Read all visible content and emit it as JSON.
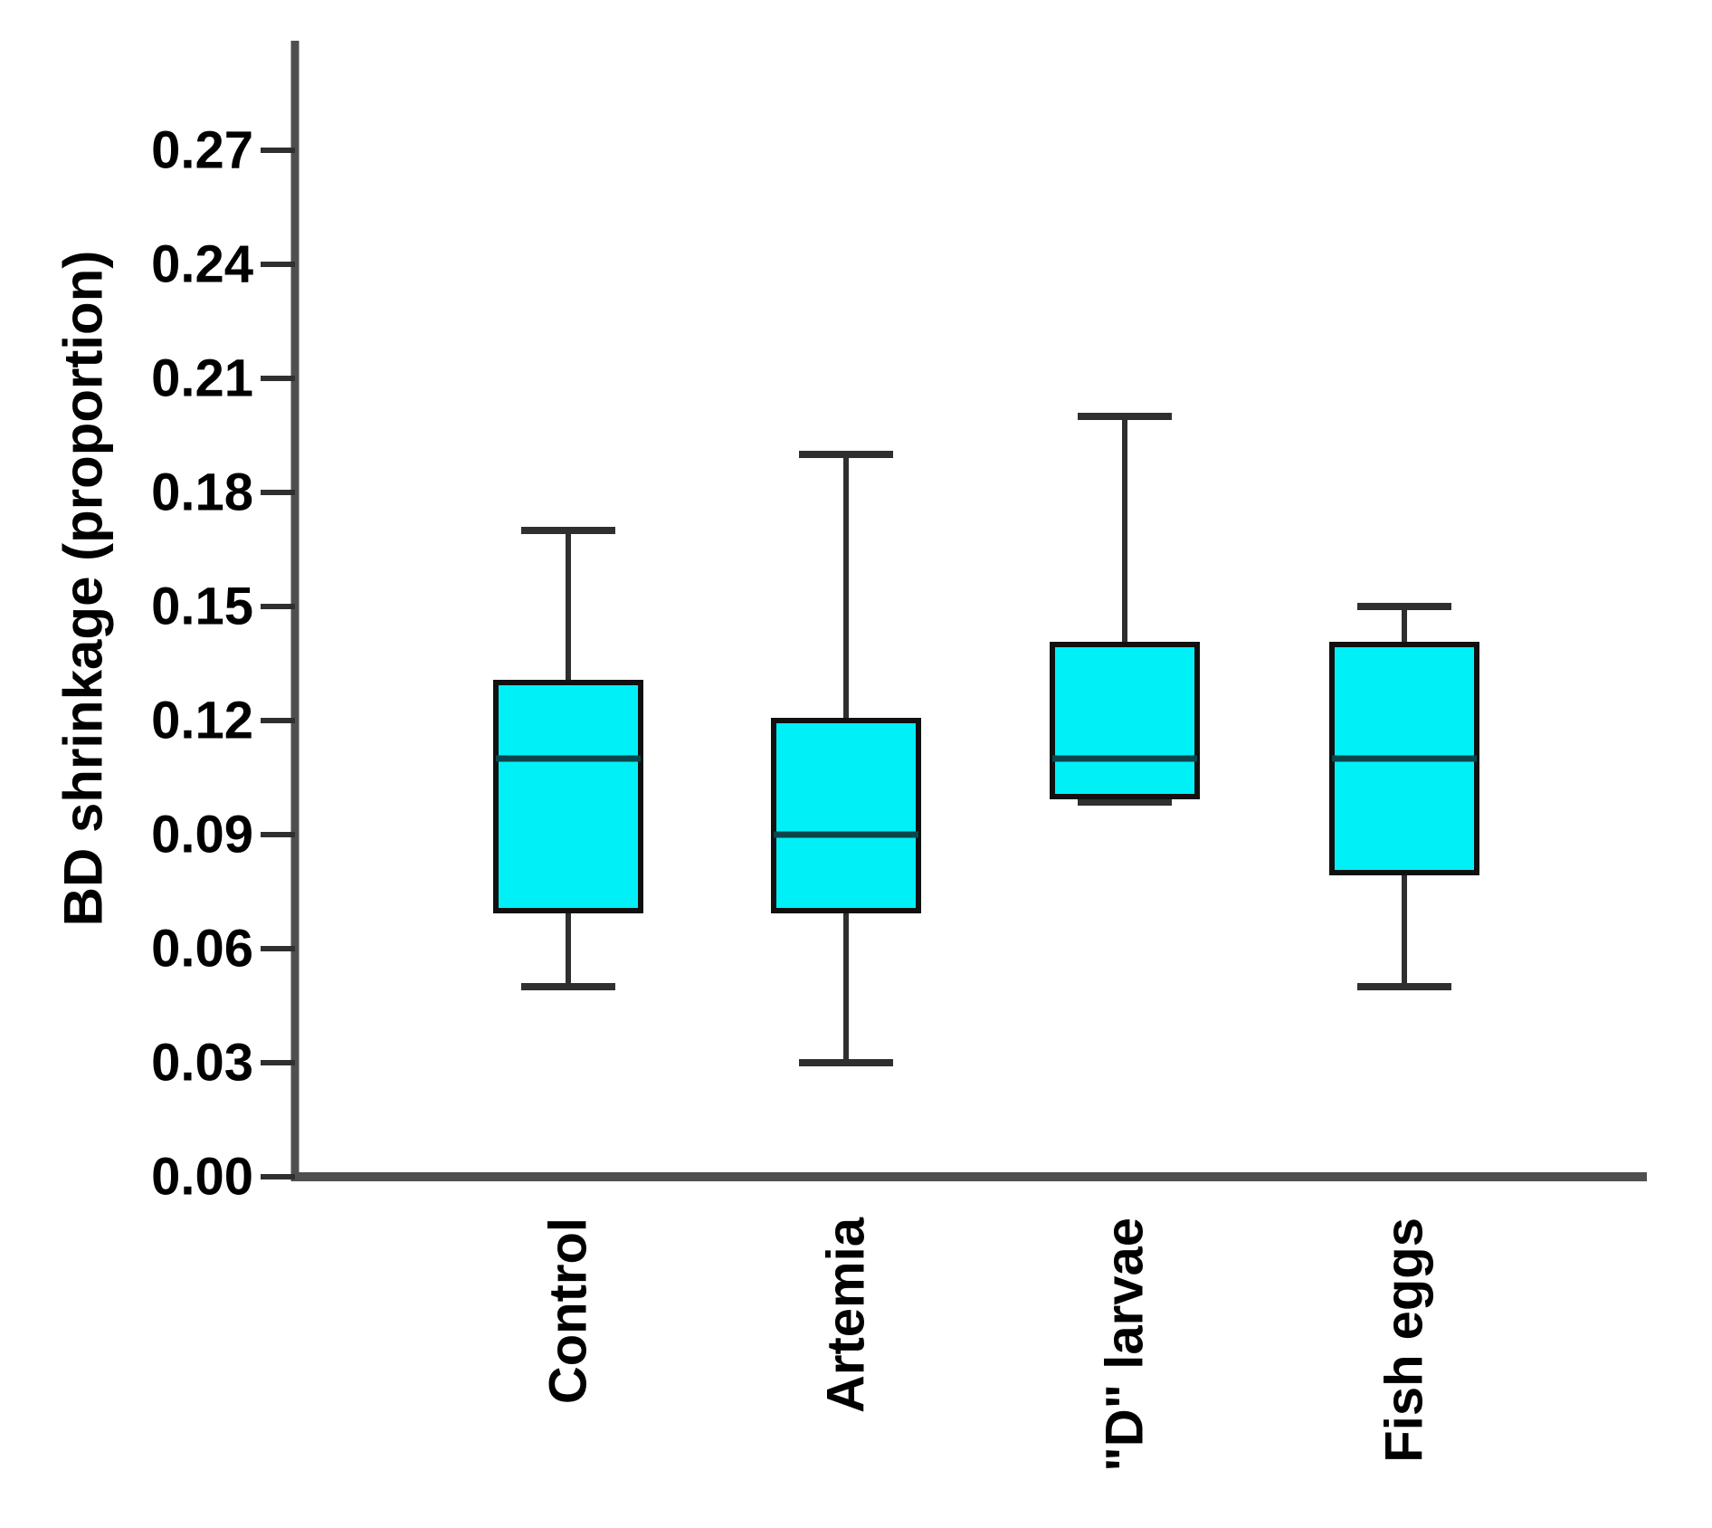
{
  "chart_data": {
    "type": "boxplot",
    "title": "",
    "xlabel": "",
    "ylabel": "BD shrinkage (proportion)",
    "categories": [
      "Control",
      "Artemia",
      "\"D\" larvae",
      "Fish eggs"
    ],
    "series": [
      {
        "name": "Control",
        "min": 0.05,
        "q1": 0.07,
        "median": 0.11,
        "q3": 0.13,
        "max": 0.17
      },
      {
        "name": "Artemia",
        "min": 0.03,
        "q1": 0.07,
        "median": 0.09,
        "q3": 0.12,
        "max": 0.19
      },
      {
        "name": "\"D\" larvae",
        "min": 0.1,
        "q1": 0.1,
        "median": 0.11,
        "q3": 0.14,
        "max": 0.2
      },
      {
        "name": "Fish eggs",
        "min": 0.05,
        "q1": 0.08,
        "median": 0.11,
        "q3": 0.14,
        "max": 0.15
      }
    ],
    "yticks": [
      0.0,
      0.03,
      0.06,
      0.09,
      0.12,
      0.15,
      0.18,
      0.21,
      0.24,
      0.27
    ],
    "ytick_labels": [
      "0.00",
      "0.03",
      "0.06",
      "0.09",
      "0.12",
      "0.15",
      "0.18",
      "0.21",
      "0.24",
      "0.27"
    ],
    "ylim": [
      0,
      0.295
    ],
    "grid": false,
    "legend": null,
    "colors": {
      "box_fill": "#00f0f8",
      "box_border": "#101010",
      "median": "#0b454c",
      "whisker": "#2f2f2f",
      "axis": "#4f4f4f",
      "tick": "#2f2f2f",
      "text": "#000000",
      "background": "#ffffff"
    }
  }
}
